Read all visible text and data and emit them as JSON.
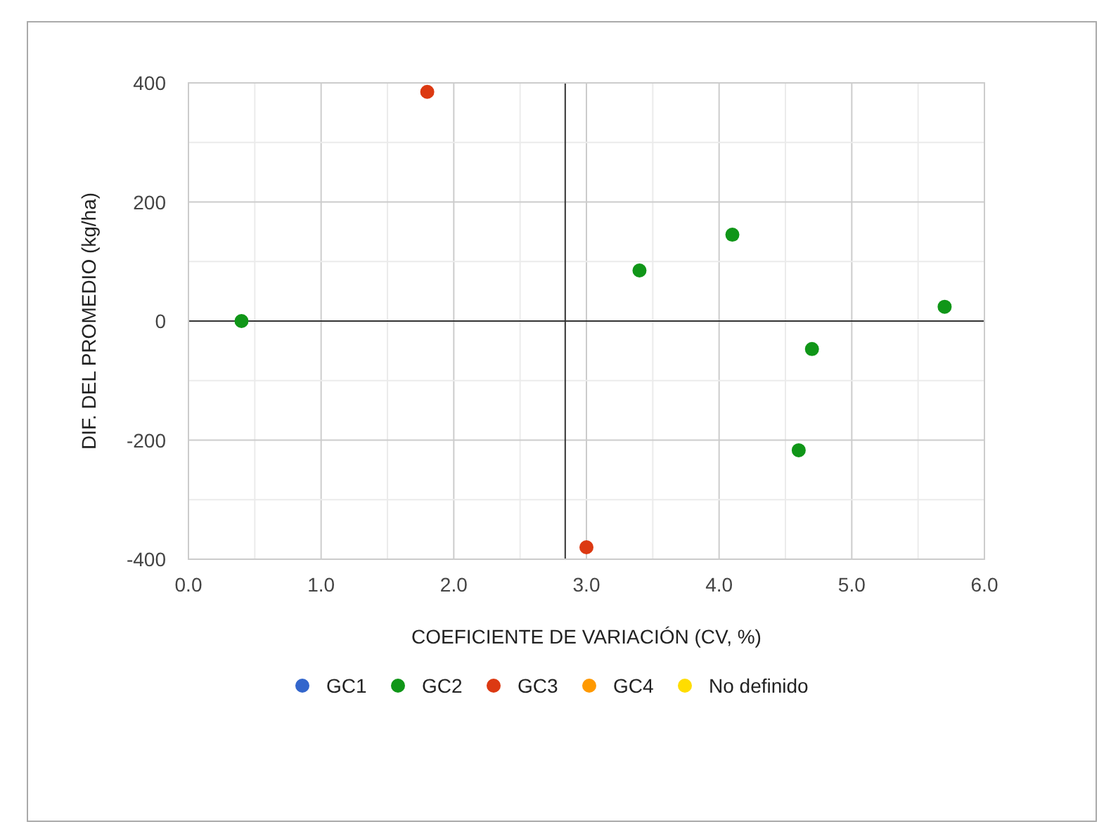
{
  "chart_data": {
    "type": "scatter",
    "xlabel": "COEFICIENTE DE VARIACIÓN (CV, %)",
    "ylabel": "DIF. DEL PROMEDIO (kg/ha)",
    "xlim": [
      0,
      6
    ],
    "ylim": [
      -400,
      400
    ],
    "xticks": [
      {
        "value": 0,
        "label": "0.0"
      },
      {
        "value": 0.5,
        "label": null
      },
      {
        "value": 1,
        "label": "1.0"
      },
      {
        "value": 1.5,
        "label": null
      },
      {
        "value": 2,
        "label": "2.0"
      },
      {
        "value": 2.5,
        "label": null
      },
      {
        "value": 3,
        "label": "3.0"
      },
      {
        "value": 3.5,
        "label": null
      },
      {
        "value": 4,
        "label": "4.0"
      },
      {
        "value": 4.5,
        "label": null
      },
      {
        "value": 5,
        "label": "5.0"
      },
      {
        "value": 5.5,
        "label": null
      },
      {
        "value": 6,
        "label": "6.0"
      }
    ],
    "yticks": [
      -400,
      {
        "value": -300,
        "label": null
      },
      -200,
      {
        "value": -100,
        "label": null
      },
      0,
      {
        "value": 100,
        "label": null
      },
      200,
      {
        "value": 300,
        "label": null
      },
      400
    ],
    "grid": true,
    "legend": "bottom",
    "marker": "circle",
    "ref_lines": [
      {
        "axis": "x",
        "value": 2.84,
        "color": "#333333"
      },
      {
        "axis": "y",
        "value": 0,
        "color": "#333333"
      }
    ],
    "series": [
      {
        "name": "GC1",
        "color": "#3366cc"
      },
      {
        "name": "GC2",
        "color": "#109618",
        "x": [
          0.4,
          3.4,
          4.1,
          5.7,
          4.7,
          4.6
        ],
        "values": [
          0,
          85,
          145,
          24,
          -47,
          -217
        ]
      },
      {
        "name": "GC3",
        "color": "#dc3912",
        "x": [
          1.8,
          3.0
        ],
        "values": [
          385,
          -380
        ]
      },
      {
        "name": "GC4",
        "color": "#ff9900"
      },
      {
        "name": "No definido",
        "color": "#ffdd00"
      }
    ]
  }
}
